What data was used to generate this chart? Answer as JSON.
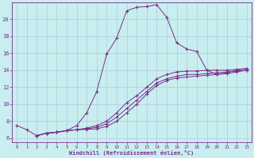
{
  "xlabel": "Windchill (Refroidissement éolien,°C)",
  "bg_color": "#c8eef0",
  "line_color": "#7b2d8b",
  "grid_color": "#b0c8d8",
  "xlim": [
    -0.5,
    23.5
  ],
  "ylim": [
    5.5,
    22.0
  ],
  "xticks": [
    0,
    1,
    2,
    3,
    4,
    5,
    6,
    7,
    8,
    9,
    10,
    11,
    12,
    13,
    14,
    15,
    16,
    17,
    18,
    19,
    20,
    21,
    22,
    23
  ],
  "yticks": [
    6,
    8,
    10,
    12,
    14,
    16,
    18,
    20
  ],
  "line1_x": [
    0,
    1,
    2,
    3,
    4,
    5,
    6,
    7,
    8,
    9,
    10,
    11,
    12,
    13,
    14,
    15,
    16,
    17,
    18,
    19,
    20,
    21,
    22,
    23
  ],
  "line1_y": [
    7.5,
    7.0,
    6.3,
    6.6,
    6.7,
    6.9,
    7.5,
    9.0,
    11.5,
    15.9,
    17.8,
    21.0,
    21.4,
    21.5,
    21.7,
    20.2,
    17.2,
    16.5,
    16.2,
    14.0,
    13.5,
    13.7,
    14.0,
    14.2
  ],
  "line2_x": [
    2,
    3,
    4,
    5,
    6,
    7,
    8,
    9,
    10,
    11,
    12,
    13,
    14,
    15,
    16,
    17,
    18,
    19,
    20,
    21,
    22,
    23
  ],
  "line2_y": [
    6.3,
    6.6,
    6.7,
    6.9,
    7.0,
    7.2,
    7.5,
    8.0,
    9.0,
    10.2,
    11.0,
    12.0,
    13.0,
    13.5,
    13.8,
    13.9,
    13.9,
    14.0,
    14.0,
    14.0,
    14.1,
    14.2
  ],
  "line3_x": [
    2,
    3,
    4,
    5,
    6,
    7,
    8,
    9,
    10,
    11,
    12,
    13,
    14,
    15,
    16,
    17,
    18,
    19,
    20,
    21,
    22,
    23
  ],
  "line3_y": [
    6.3,
    6.6,
    6.7,
    6.9,
    7.0,
    7.1,
    7.3,
    7.7,
    8.5,
    9.5,
    10.5,
    11.5,
    12.5,
    13.0,
    13.3,
    13.5,
    13.5,
    13.6,
    13.7,
    13.8,
    13.9,
    14.0
  ],
  "line4_x": [
    2,
    3,
    4,
    5,
    6,
    7,
    8,
    9,
    10,
    11,
    12,
    13,
    14,
    15,
    16,
    17,
    18,
    19,
    20,
    21,
    22,
    23
  ],
  "line4_y": [
    6.3,
    6.6,
    6.7,
    6.9,
    7.0,
    7.05,
    7.1,
    7.4,
    8.0,
    9.0,
    10.0,
    11.2,
    12.2,
    12.8,
    13.1,
    13.2,
    13.3,
    13.4,
    13.5,
    13.6,
    13.8,
    14.0
  ]
}
